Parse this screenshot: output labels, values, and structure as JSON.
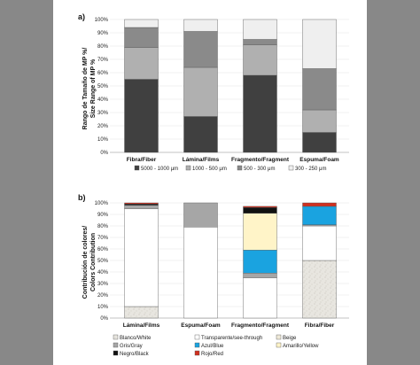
{
  "chart_data": [
    {
      "type": "bar",
      "stacked": true,
      "panel_label": "a)",
      "ylabel_lines": [
        "Rango de Tamaño de MP %/",
        "Size Range of MP %"
      ],
      "yticks": [
        "0%",
        "10%",
        "20%",
        "30%",
        "40%",
        "50%",
        "60%",
        "70%",
        "80%",
        "90%",
        "100%"
      ],
      "ylim": [
        0,
        100
      ],
      "categories": [
        "Fibra/Fiber",
        "Lámina/Films",
        "Fragmento/Fragment",
        "Espuma/Foam"
      ],
      "series": [
        {
          "name": "5000 - 1000 μm",
          "color": "#404040",
          "values": [
            55,
            27,
            58,
            15
          ]
        },
        {
          "name": "1000 - 500 μm",
          "color": "#b0b0b0",
          "values": [
            24,
            37,
            23,
            17
          ]
        },
        {
          "name": "500 - 300 μm",
          "color": "#8a8a8a",
          "values": [
            15,
            27,
            4,
            31
          ]
        },
        {
          "name": "300 - 250 μm",
          "color": "#efefef",
          "values": [
            6,
            9,
            15,
            37
          ]
        }
      ],
      "legend_position": "bottom"
    },
    {
      "type": "bar",
      "stacked": true,
      "panel_label": "b)",
      "ylabel_lines": [
        "Contribución de colores/",
        "Colors Contribution"
      ],
      "yticks": [
        "0%",
        "10%",
        "20%",
        "30%",
        "40%",
        "50%",
        "60%",
        "70%",
        "80%",
        "90%",
        "100%"
      ],
      "ylim": [
        0,
        100
      ],
      "categories": [
        "Lámina/Films",
        "Espuma/Foam",
        "Fragmento/Fragment",
        "Fibra/Fiber"
      ],
      "series": [
        {
          "name": "Blanco/White",
          "color": "#e8e6e0",
          "values": [
            10,
            0,
            0,
            50
          ]
        },
        {
          "name": "Transparente/see-through",
          "color": "#ffffff",
          "values": [
            85,
            79,
            35,
            30
          ]
        },
        {
          "name": "Beige",
          "color": "#efe9d8",
          "values": [
            0,
            0,
            0,
            0
          ]
        },
        {
          "name": "Gris/Gray",
          "color": "#a6a6a6",
          "values": [
            3,
            21,
            4,
            1
          ]
        },
        {
          "name": "Azul/Blue",
          "color": "#1aa3e0",
          "values": [
            0,
            0,
            20,
            16
          ]
        },
        {
          "name": "Amarillo/Yellow",
          "color": "#fff4c8",
          "values": [
            0,
            0,
            32,
            0
          ]
        },
        {
          "name": "Negro/Black",
          "color": "#111111",
          "values": [
            1,
            0,
            5,
            0
          ]
        },
        {
          "name": "Rojo/Red",
          "color": "#d03020",
          "values": [
            1,
            0,
            1,
            3
          ]
        }
      ],
      "legend_position": "bottom"
    }
  ]
}
